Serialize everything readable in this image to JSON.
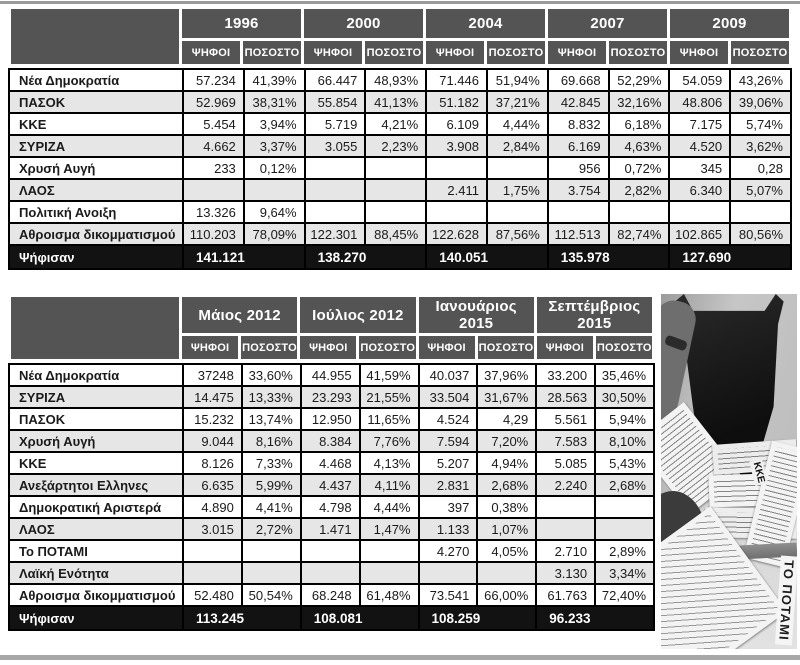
{
  "chart_data": [
    {
      "type": "table",
      "corner_label": "",
      "column_groups": [
        "1996",
        "2000",
        "2004",
        "2007",
        "2009"
      ],
      "subheaders": [
        "ΨΗΦΟΙ",
        "ΠΟΣΟΣΤΟ"
      ],
      "rows": [
        {
          "label": "Νέα Δημοκρατία",
          "cells": [
            "57.234",
            "41,39%",
            "66.447",
            "48,93%",
            "71.446",
            "51,94%",
            "69.668",
            "52,29%",
            "54.059",
            "43,26%"
          ]
        },
        {
          "label": "ΠΑΣΟΚ",
          "cells": [
            "52.969",
            "38,31%",
            "55.854",
            "41,13%",
            "51.182",
            "37,21%",
            "42.845",
            "32,16%",
            "48.806",
            "39,06%"
          ]
        },
        {
          "label": "ΚΚΕ",
          "cells": [
            "5.454",
            "3,94%",
            "5.719",
            "4,21%",
            "6.109",
            "4,44%",
            "8.832",
            "6,18%",
            "7.175",
            "5,74%"
          ]
        },
        {
          "label": "ΣΥΡΙΖΑ",
          "cells": [
            "4.662",
            "3,37%",
            "3.055",
            "2,23%",
            "3.908",
            "2,84%",
            "6.169",
            "4,63%",
            "4.520",
            "3,62%"
          ]
        },
        {
          "label": "Χρυσή Αυγή",
          "cells": [
            "233",
            "0,12%",
            "",
            "",
            "",
            "",
            "956",
            "0,72%",
            "345",
            "0,28"
          ]
        },
        {
          "label": "ΛΑΟΣ",
          "cells": [
            "",
            "",
            "",
            "",
            "2.411",
            "1,75%",
            "3.754",
            "2,82%",
            "6.340",
            "5,07%"
          ]
        },
        {
          "label": "Πολιτική Ανοιξη",
          "cells": [
            "13.326",
            "9,64%",
            "",
            "",
            "",
            "",
            "",
            "",
            "",
            ""
          ]
        },
        {
          "label": "Αθροισμα δικομματισμού",
          "cells": [
            "110.203",
            "78,09%",
            "122.301",
            "88,45%",
            "122.628",
            "87,56%",
            "112.513",
            "82,74%",
            "102.865",
            "80,56%"
          ]
        }
      ],
      "footer": {
        "label": "Ψήφισαν",
        "values": [
          "141.121",
          "138.270",
          "140.051",
          "135.978",
          "127.690"
        ]
      }
    },
    {
      "type": "table",
      "corner_label": "",
      "column_groups": [
        "Μάιος 2012",
        "Ιούλιος 2012",
        "Ιανουάριος 2015",
        "Σεπτέμβριος 2015"
      ],
      "subheaders": [
        "ΨΗΦΟΙ",
        "ΠΟΣΟΣΤΟ"
      ],
      "rows": [
        {
          "label": "Νέα Δημοκρατία",
          "cells": [
            "37248",
            "33,60%",
            "44.955",
            "41,59%",
            "40.037",
            "37,96%",
            "33.200",
            "35,46%"
          ]
        },
        {
          "label": "ΣΥΡΙΖΑ",
          "cells": [
            "14.475",
            "13,33%",
            "23.293",
            "21,55%",
            "33.504",
            "31,67%",
            "28.563",
            "30,50%"
          ]
        },
        {
          "label": "ΠΑΣΟΚ",
          "cells": [
            "15.232",
            "13,74%",
            "12.950",
            "11,65%",
            "4.524",
            "4,29",
            "5.561",
            "5,94%"
          ]
        },
        {
          "label": "Χρυσή Αυγή",
          "cells": [
            "9.044",
            "8,16%",
            "8.384",
            "7,76%",
            "7.594",
            "7,20%",
            "7.583",
            "8,10%"
          ]
        },
        {
          "label": "ΚΚΕ",
          "cells": [
            "8.126",
            "7,33%",
            "4.468",
            "4,13%",
            "5.207",
            "4,94%",
            "5.085",
            "5,43%"
          ]
        },
        {
          "label": "Ανεξάρτητοι Ελληνες",
          "cells": [
            "6.635",
            "5,99%",
            "4.437",
            "4,11%",
            "2.831",
            "2,68%",
            "2.240",
            "2,68%"
          ]
        },
        {
          "label": "Δημοκρατική Αριστερά",
          "cells": [
            "4.890",
            "4,41%",
            "4.798",
            "4,44%",
            "397",
            "0,38%",
            "",
            ""
          ]
        },
        {
          "label": "ΛΑΟΣ",
          "cells": [
            "3.015",
            "2,72%",
            "1.471",
            "1,47%",
            "1.133",
            "1,07%",
            "",
            ""
          ]
        },
        {
          "label": "Το ΠΟΤΑΜΙ",
          "cells": [
            "",
            "",
            "",
            "",
            "4.270",
            "4,05%",
            "2.710",
            "2,89%"
          ]
        },
        {
          "label": "Λαϊκή Ενότητα",
          "cells": [
            "",
            "",
            "",
            "",
            "",
            "",
            "3.130",
            "3,34%"
          ]
        },
        {
          "label": "Αθροισμα δικομματισμού",
          "cells": [
            "52.480",
            "50,54%",
            "68.248",
            "61,48%",
            "73.541",
            "66,00%",
            "61.763",
            "72,40%"
          ]
        }
      ],
      "footer": {
        "label": "Ψήφισαν",
        "values": [
          "113.245",
          "108.081",
          "108.259",
          "96.233"
        ]
      }
    }
  ],
  "photo": {
    "potami_text": "ΤΟ ΠΟΤΑΜΙ",
    "kke_text": "ΚΚΕ"
  },
  "colors": {
    "header_bg": "#545454",
    "stripe_bg": "#e6e6e6",
    "total_row_bg": "#121212",
    "table_border": "#000000",
    "page_rule": "#a8a8a8"
  }
}
